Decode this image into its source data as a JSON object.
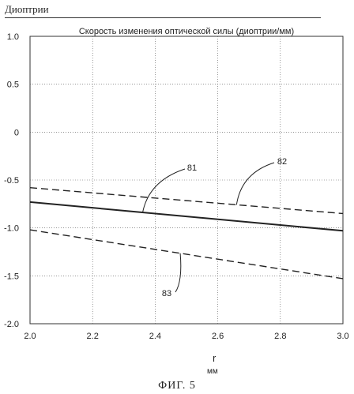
{
  "header": {
    "unit_label": "Диоптрии"
  },
  "footer": {
    "xunit": "мм",
    "figure_caption": "ФИГ. 5"
  },
  "chart_data": {
    "type": "line",
    "title": "Скорость изменения оптической силы (диоптрии/мм)",
    "xlabel": "r",
    "ylabel": "Диоптрии",
    "xlim": [
      2.0,
      3.0
    ],
    "ylim": [
      -2.0,
      1.0
    ],
    "x_ticks": [
      "2.0",
      "2.2",
      "2.4",
      "2.6",
      "2.8",
      "3.0"
    ],
    "y_ticks": [
      "1.0",
      "0.5",
      "0",
      "-0.5",
      "-1.0",
      "-1.5",
      "-2.0"
    ],
    "grid": true,
    "series": [
      {
        "name": "81",
        "style": "solid",
        "x": [
          2.0,
          3.0
        ],
        "y": [
          -0.73,
          -1.03
        ]
      },
      {
        "name": "82",
        "style": "dashed",
        "x": [
          2.0,
          3.0
        ],
        "y": [
          -0.58,
          -0.85
        ]
      },
      {
        "name": "83",
        "style": "dashed",
        "x": [
          2.0,
          3.0
        ],
        "y": [
          -1.02,
          -1.53
        ]
      }
    ],
    "annotations": [
      "81",
      "82",
      "83"
    ]
  }
}
